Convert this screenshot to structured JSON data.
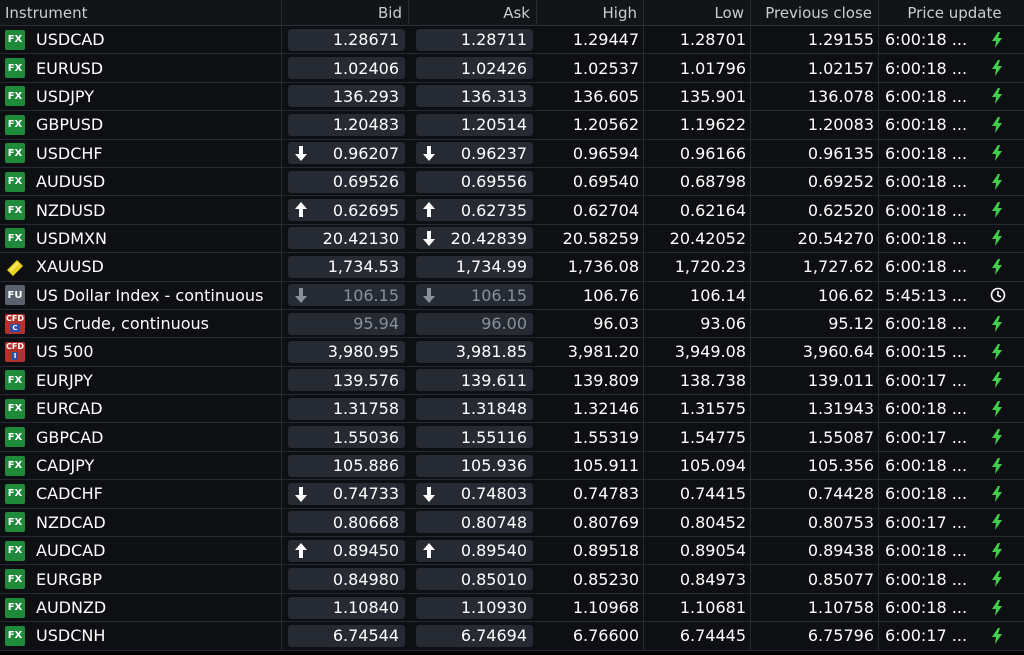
{
  "columns": {
    "instrument": "Instrument",
    "bid": "Bid",
    "ask": "Ask",
    "high": "High",
    "low": "Low",
    "prev_close": "Previous close",
    "price_update": "Price update"
  },
  "colors": {
    "fx_badge": "#1f8a3a",
    "cfd_badge": "#b4322d",
    "fu_badge": "#59626e",
    "lightning": "#3fcf4a",
    "quote_bg": "#262b33"
  },
  "rows": [
    {
      "badge": "FX",
      "name": "USDCAD",
      "bid": "1.28671",
      "ask": "1.28711",
      "high": "1.29447",
      "low": "1.28701",
      "prev": "1.29155",
      "time": "6:00:18 ...",
      "bid_arrow": "",
      "ask_arrow": "",
      "dim": false,
      "status": "lightning-icon"
    },
    {
      "badge": "FX",
      "name": "EURUSD",
      "bid": "1.02406",
      "ask": "1.02426",
      "high": "1.02537",
      "low": "1.01796",
      "prev": "1.02157",
      "time": "6:00:18 ...",
      "bid_arrow": "",
      "ask_arrow": "",
      "dim": false,
      "status": "lightning-icon"
    },
    {
      "badge": "FX",
      "name": "USDJPY",
      "bid": "136.293",
      "ask": "136.313",
      "high": "136.605",
      "low": "135.901",
      "prev": "136.078",
      "time": "6:00:18 ...",
      "bid_arrow": "",
      "ask_arrow": "",
      "dim": false,
      "status": "lightning-icon"
    },
    {
      "badge": "FX",
      "name": "GBPUSD",
      "bid": "1.20483",
      "ask": "1.20514",
      "high": "1.20562",
      "low": "1.19622",
      "prev": "1.20083",
      "time": "6:00:18 ...",
      "bid_arrow": "",
      "ask_arrow": "",
      "dim": false,
      "status": "lightning-icon"
    },
    {
      "badge": "FX",
      "name": "USDCHF",
      "bid": "0.96207",
      "ask": "0.96237",
      "high": "0.96594",
      "low": "0.96166",
      "prev": "0.96135",
      "time": "6:00:18 ...",
      "bid_arrow": "down",
      "ask_arrow": "down",
      "dim": false,
      "status": "lightning-icon"
    },
    {
      "badge": "FX",
      "name": "AUDUSD",
      "bid": "0.69526",
      "ask": "0.69556",
      "high": "0.69540",
      "low": "0.68798",
      "prev": "0.69252",
      "time": "6:00:18 ...",
      "bid_arrow": "",
      "ask_arrow": "",
      "dim": false,
      "status": "lightning-icon"
    },
    {
      "badge": "FX",
      "name": "NZDUSD",
      "bid": "0.62695",
      "ask": "0.62735",
      "high": "0.62704",
      "low": "0.62164",
      "prev": "0.62520",
      "time": "6:00:18 ...",
      "bid_arrow": "up",
      "ask_arrow": "up",
      "dim": false,
      "status": "lightning-icon"
    },
    {
      "badge": "FX",
      "name": "USDMXN",
      "bid": "20.42130",
      "ask": "20.42839",
      "high": "20.58259",
      "low": "20.42052",
      "prev": "20.54270",
      "time": "6:00:18 ...",
      "bid_arrow": "",
      "ask_arrow": "down",
      "dim": false,
      "status": "lightning-icon"
    },
    {
      "badge": "GOLD",
      "name": "XAUUSD",
      "bid": "1,734.53",
      "ask": "1,734.99",
      "high": "1,736.08",
      "low": "1,720.23",
      "prev": "1,727.62",
      "time": "6:00:18 ...",
      "bid_arrow": "",
      "ask_arrow": "",
      "dim": false,
      "status": "lightning-icon"
    },
    {
      "badge": "FU",
      "name": "US Dollar Index - continuous",
      "bid": "106.15",
      "ask": "106.15",
      "high": "106.76",
      "low": "106.14",
      "prev": "106.62",
      "time": "5:45:13 ...",
      "bid_arrow": "down",
      "ask_arrow": "down",
      "dim": true,
      "status": "clock-icon"
    },
    {
      "badge": "CFD",
      "badge_sub": "C",
      "name": "US Crude, continuous",
      "bid": "95.94",
      "ask": "96.00",
      "high": "96.03",
      "low": "93.06",
      "prev": "95.12",
      "time": "6:00:18 ...",
      "bid_arrow": "",
      "ask_arrow": "",
      "dim": true,
      "status": "lightning-icon"
    },
    {
      "badge": "CFD",
      "badge_sub": "I",
      "name": "US 500",
      "bid": "3,980.95",
      "ask": "3,981.85",
      "high": "3,981.20",
      "low": "3,949.08",
      "prev": "3,960.64",
      "time": "6:00:15 ...",
      "bid_arrow": "",
      "ask_arrow": "",
      "dim": false,
      "status": "lightning-icon"
    },
    {
      "badge": "FX",
      "name": "EURJPY",
      "bid": "139.576",
      "ask": "139.611",
      "high": "139.809",
      "low": "138.738",
      "prev": "139.011",
      "time": "6:00:17 ...",
      "bid_arrow": "",
      "ask_arrow": "",
      "dim": false,
      "status": "lightning-icon"
    },
    {
      "badge": "FX",
      "name": "EURCAD",
      "bid": "1.31758",
      "ask": "1.31848",
      "high": "1.32146",
      "low": "1.31575",
      "prev": "1.31943",
      "time": "6:00:18 ...",
      "bid_arrow": "",
      "ask_arrow": "",
      "dim": false,
      "status": "lightning-icon"
    },
    {
      "badge": "FX",
      "name": "GBPCAD",
      "bid": "1.55036",
      "ask": "1.55116",
      "high": "1.55319",
      "low": "1.54775",
      "prev": "1.55087",
      "time": "6:00:17 ...",
      "bid_arrow": "",
      "ask_arrow": "",
      "dim": false,
      "status": "lightning-icon"
    },
    {
      "badge": "FX",
      "name": "CADJPY",
      "bid": "105.886",
      "ask": "105.936",
      "high": "105.911",
      "low": "105.094",
      "prev": "105.356",
      "time": "6:00:18 ...",
      "bid_arrow": "",
      "ask_arrow": "",
      "dim": false,
      "status": "lightning-icon"
    },
    {
      "badge": "FX",
      "name": "CADCHF",
      "bid": "0.74733",
      "ask": "0.74803",
      "high": "0.74783",
      "low": "0.74415",
      "prev": "0.74428",
      "time": "6:00:18 ...",
      "bid_arrow": "down",
      "ask_arrow": "down",
      "dim": false,
      "status": "lightning-icon"
    },
    {
      "badge": "FX",
      "name": "NZDCAD",
      "bid": "0.80668",
      "ask": "0.80748",
      "high": "0.80769",
      "low": "0.80452",
      "prev": "0.80753",
      "time": "6:00:17 ...",
      "bid_arrow": "",
      "ask_arrow": "",
      "dim": false,
      "status": "lightning-icon"
    },
    {
      "badge": "FX",
      "name": "AUDCAD",
      "bid": "0.89450",
      "ask": "0.89540",
      "high": "0.89518",
      "low": "0.89054",
      "prev": "0.89438",
      "time": "6:00:18 ...",
      "bid_arrow": "up",
      "ask_arrow": "up",
      "dim": false,
      "status": "lightning-icon"
    },
    {
      "badge": "FX",
      "name": "EURGBP",
      "bid": "0.84980",
      "ask": "0.85010",
      "high": "0.85230",
      "low": "0.84973",
      "prev": "0.85077",
      "time": "6:00:18 ...",
      "bid_arrow": "",
      "ask_arrow": "",
      "dim": false,
      "status": "lightning-icon"
    },
    {
      "badge": "FX",
      "name": "AUDNZD",
      "bid": "1.10840",
      "ask": "1.10930",
      "high": "1.10968",
      "low": "1.10681",
      "prev": "1.10758",
      "time": "6:00:18 ...",
      "bid_arrow": "",
      "ask_arrow": "",
      "dim": false,
      "status": "lightning-icon"
    },
    {
      "badge": "FX",
      "name": "USDCNH",
      "bid": "6.74544",
      "ask": "6.74694",
      "high": "6.76600",
      "low": "6.74445",
      "prev": "6.75796",
      "time": "6:00:17 ...",
      "bid_arrow": "",
      "ask_arrow": "",
      "dim": false,
      "status": "lightning-icon"
    }
  ]
}
